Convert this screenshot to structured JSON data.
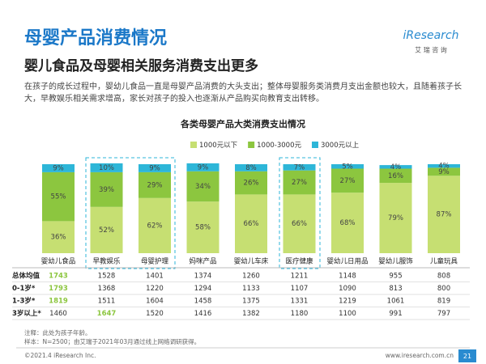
{
  "header": {
    "title": "母婴产品消费情况",
    "logo": "iResearch",
    "logo_sub": "艾 瑞 咨 询"
  },
  "subtitle": "婴儿食品及母婴相关服务消费支出更多",
  "paragraph": "在孩子的成长过程中，婴幼儿食品一直是母婴产品消费的大头支出；整体母婴服务类消费月支出金额也较大，且随着孩子长大，早教娱乐相关需求增高，家长对孩子的投入也逐渐从产品购买向教育支出转移。",
  "chart_data": {
    "type": "bar",
    "stacked": true,
    "title": "各类母婴产品大类消费支出情况",
    "categories": [
      "婴幼儿食品",
      "早教娱乐",
      "母婴护理",
      "妈咪产品",
      "婴幼儿车床",
      "医疗健康",
      "婴幼儿日用品",
      "婴幼儿服饰",
      "儿童玩具"
    ],
    "ylim": [
      0,
      100
    ],
    "series": [
      {
        "name": "1000元以下",
        "color": "#c6df72",
        "values": [
          36,
          52,
          62,
          58,
          66,
          66,
          68,
          79,
          87
        ],
        "value_labels": [
          "36%",
          "52%",
          "62%",
          "58%",
          "66%",
          "66%",
          "68%",
          "79%",
          "87%"
        ]
      },
      {
        "name": "1000-3000元",
        "color": "#8cc63f",
        "values": [
          55,
          39,
          29,
          34,
          26,
          27,
          27,
          16,
          9
        ],
        "value_labels": [
          "55%",
          "39%",
          "29%",
          "34%",
          "26%",
          "27%",
          "27%",
          "16%",
          "9%"
        ]
      },
      {
        "name": "3000元以上",
        "color": "#2db6d8",
        "values": [
          9,
          10,
          9,
          9,
          8,
          7,
          5,
          4,
          4
        ],
        "value_labels": [
          "9%",
          "10%",
          "9%",
          "9%",
          "8%",
          "7%",
          "5%",
          "4%",
          "4%"
        ]
      }
    ]
  },
  "table": {
    "row_labels": [
      "总体均值",
      "0-1岁*",
      "1-3岁*",
      "3岁以上*"
    ],
    "rows": [
      [
        1743,
        1528,
        1401,
        1374,
        1260,
        1211,
        1148,
        955,
        808
      ],
      [
        1793,
        1368,
        1220,
        1294,
        1133,
        1107,
        1090,
        813,
        800
      ],
      [
        1819,
        1511,
        1604,
        1458,
        1375,
        1331,
        1219,
        1061,
        819
      ],
      [
        1460,
        1647,
        1520,
        1416,
        1382,
        1180,
        1100,
        991,
        797
      ]
    ],
    "highlight_color": "#8cc63f",
    "highlight_cells": [
      [
        0,
        0
      ],
      [
        1,
        0
      ],
      [
        2,
        0
      ],
      [
        3,
        1
      ]
    ]
  },
  "notes": [
    "注释：此处为孩子年龄。",
    "样本：N=2500；由艾瑞于2021年03月通过线上网络调研获得。"
  ],
  "footer": {
    "copyright": "©2021.4 iResearch Inc.",
    "url": "www.iresearch.com.cn",
    "page": "21"
  }
}
